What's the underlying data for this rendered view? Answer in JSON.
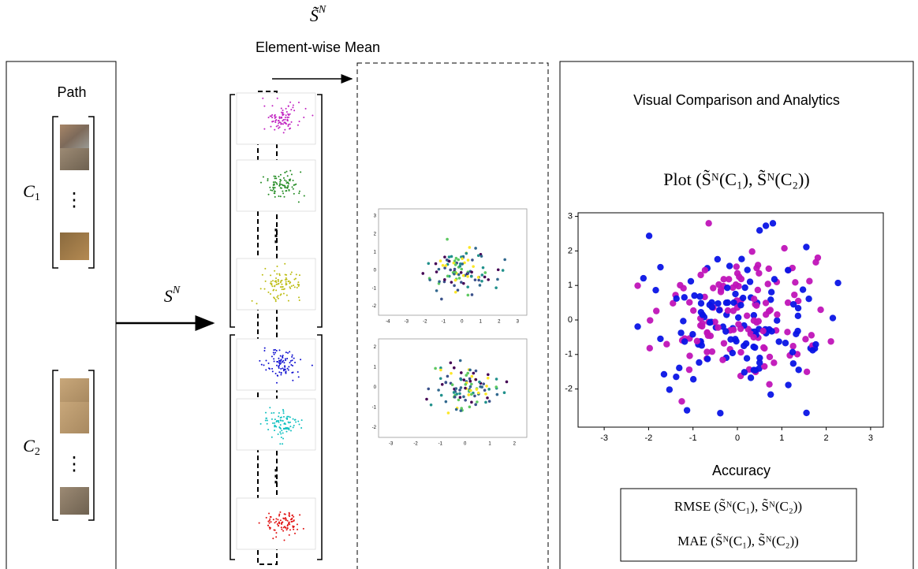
{
  "top_label": {
    "base": "S̃",
    "sup": "N"
  },
  "mean_label": "Element-wise Mean",
  "path_panel": {
    "title": "Path",
    "c1": {
      "base": "C",
      "sub": "1"
    },
    "c2": {
      "base": "C",
      "sub": "2"
    },
    "dots": "⋮"
  },
  "arrow_label": {
    "base": "S",
    "sup": "N"
  },
  "middle_plots": [
    {
      "xticks": [
        -4,
        -3,
        -2,
        -1,
        0,
        1,
        2,
        3
      ],
      "yticks": [
        -2,
        -1,
        0,
        1,
        2,
        3
      ]
    },
    {
      "xticks": [
        -3,
        -2,
        -1,
        0,
        1,
        2
      ],
      "yticks": [
        -2,
        -1,
        0,
        1,
        2
      ]
    }
  ],
  "right_panel": {
    "title": "Visual Comparison and Analytics",
    "plot_label": "Plot (S̃ᴺ(C₁), S̃ᴺ(C₂))",
    "xticks": [
      -3,
      -2,
      -1,
      0,
      1,
      2,
      3
    ],
    "yticks": [
      -2,
      -1,
      0,
      1,
      2,
      3
    ],
    "accuracy_title": "Accuracy",
    "rmse": "RMSE (S̃ᴺ(C₁), S̃ᴺ(C₂))",
    "mae": "MAE (S̃ᴺ(C₁), S̃ᴺ(C₂))"
  }
}
